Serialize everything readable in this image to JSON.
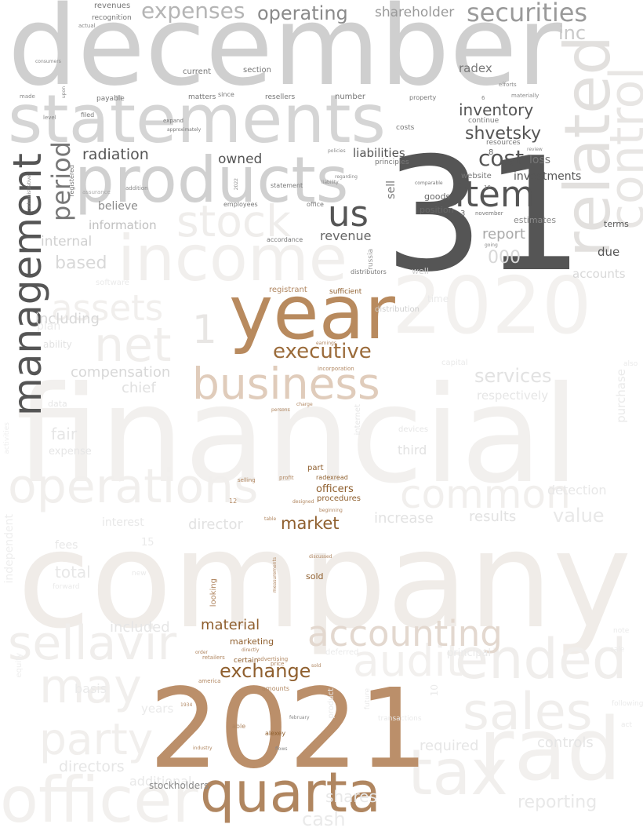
{
  "words": [
    {
      "text": "financial",
      "color": "#f2f0ee"
    },
    {
      "text": "company",
      "color": "#f0ece8"
    },
    {
      "text": "2020",
      "color": "#f3f1ef"
    },
    {
      "text": "income",
      "color": "#f1efed"
    },
    {
      "text": "rad",
      "color": "#f2f0ee"
    },
    {
      "text": "officer",
      "color": "#f2f0ee"
    },
    {
      "text": "operations",
      "color": "#f1efed"
    },
    {
      "text": "sellavir",
      "color": "#f0eeec"
    },
    {
      "text": "common",
      "color": "#f1efed"
    },
    {
      "text": "ended",
      "color": "#f0eeec"
    },
    {
      "text": "sales",
      "color": "#f0eeec"
    },
    {
      "text": "tax",
      "color": "#f1efed"
    },
    {
      "text": "may",
      "color": "#f1efed"
    },
    {
      "text": "party",
      "color": "#f1efed"
    },
    {
      "text": "audit",
      "color": "#f2f0ee"
    },
    {
      "text": "net",
      "color": "#f0eeec"
    },
    {
      "text": "assets",
      "color": "#f1efed"
    },
    {
      "text": "stock",
      "color": "#efedeb"
    },
    {
      "text": "related",
      "color": "#e2e0de"
    },
    {
      "text": "control",
      "color": "#e8e6e4"
    },
    {
      "text": "december",
      "color": "#cfcfcf"
    },
    {
      "text": "statements",
      "color": "#d5d5d5"
    },
    {
      "text": "products",
      "color": "#d0d0d0"
    },
    {
      "text": "31",
      "color": "#555555"
    },
    {
      "text": "item",
      "color": "#555555"
    },
    {
      "text": "us",
      "color": "#555555"
    },
    {
      "text": "management",
      "color": "#555555"
    },
    {
      "text": "period",
      "color": "#777777"
    },
    {
      "text": "securities",
      "color": "#9a9a9a"
    },
    {
      "text": "expenses",
      "color": "#b5b5b5"
    },
    {
      "text": "operating",
      "color": "#8a8a8a"
    },
    {
      "text": "shareholder",
      "color": "#9a9a9a"
    },
    {
      "text": "inc",
      "color": "#c8c8c8"
    },
    {
      "text": "inventory",
      "color": "#555555"
    },
    {
      "text": "shvetsky",
      "color": "#555555"
    },
    {
      "text": "cost",
      "color": "#555555"
    },
    {
      "text": "radiation",
      "color": "#555555"
    },
    {
      "text": "owned",
      "color": "#555555"
    },
    {
      "text": "liabilities",
      "color": "#555555"
    },
    {
      "text": "investments",
      "color": "#555555"
    },
    {
      "text": "loss",
      "color": "#777777"
    },
    {
      "text": "radex",
      "color": "#777777"
    },
    {
      "text": "website",
      "color": "#777777"
    },
    {
      "text": "revenue",
      "color": "#666666"
    },
    {
      "text": "goods",
      "color": "#666666"
    },
    {
      "text": "position",
      "color": "#666666"
    },
    {
      "text": "report",
      "color": "#aaaaaa"
    },
    {
      "text": "due",
      "color": "#555555"
    },
    {
      "text": "terms",
      "color": "#555555"
    },
    {
      "text": "estimates",
      "color": "#8a8a8a"
    },
    {
      "text": "believe",
      "color": "#8a8a8a"
    },
    {
      "text": "information",
      "color": "#c0c0c0"
    },
    {
      "text": "internal",
      "color": "#d0d0d0"
    },
    {
      "text": "based",
      "color": "#d8d8d8"
    },
    {
      "text": "including",
      "color": "#d8d8d8"
    },
    {
      "text": "1",
      "color": "#e8e6e4"
    },
    {
      "text": "000",
      "color": "#d8d8d8"
    },
    {
      "text": "accounts",
      "color": "#d8d8d8"
    },
    {
      "text": "sell",
      "color": "#777777"
    },
    {
      "text": "current",
      "color": "#777777"
    },
    {
      "text": "section",
      "color": "#777777"
    },
    {
      "text": "resellers",
      "color": "#777777"
    },
    {
      "text": "number",
      "color": "#777777"
    },
    {
      "text": "matters",
      "color": "#777777"
    },
    {
      "text": "since",
      "color": "#777777"
    },
    {
      "text": "payable",
      "color": "#777777"
    },
    {
      "text": "filed",
      "color": "#777777"
    },
    {
      "text": "continue",
      "color": "#777777"
    },
    {
      "text": "costs",
      "color": "#777777"
    },
    {
      "text": "resources",
      "color": "#777777"
    },
    {
      "text": "property",
      "color": "#777777"
    },
    {
      "text": "recognition",
      "color": "#777777"
    },
    {
      "text": "revenues",
      "color": "#777777"
    },
    {
      "text": "accordance",
      "color": "#777777"
    },
    {
      "text": "statement",
      "color": "#777777"
    },
    {
      "text": "employees",
      "color": "#777777"
    },
    {
      "text": "office",
      "color": "#777777"
    },
    {
      "text": "principles",
      "color": "#777777"
    },
    {
      "text": "distributors",
      "color": "#777777"
    },
    {
      "text": "approximately",
      "color": "#777777"
    },
    {
      "text": "registered",
      "color": "#777777"
    },
    {
      "text": "year",
      "color": "#b88a5e"
    },
    {
      "text": "business",
      "color": "#e0ccbb"
    },
    {
      "text": "executive",
      "color": "#9b6b3a"
    },
    {
      "text": "2021",
      "color": "#bb8f6a"
    },
    {
      "text": "quarta",
      "color": "#b08660"
    },
    {
      "text": "accounting",
      "color": "#e3d8cf"
    },
    {
      "text": "exchange",
      "color": "#8f5f2e"
    },
    {
      "text": "market",
      "color": "#8f5f2e"
    },
    {
      "text": "material",
      "color": "#8f5f2e"
    },
    {
      "text": "officers",
      "color": "#8f5f2e"
    },
    {
      "text": "procedures",
      "color": "#8f5f2e"
    },
    {
      "text": "radexread",
      "color": "#8f5f2e"
    },
    {
      "text": "part",
      "color": "#8f5f2e"
    },
    {
      "text": "sold",
      "color": "#8f5f2e"
    },
    {
      "text": "marketing",
      "color": "#8f5f2e"
    },
    {
      "text": "certain",
      "color": "#8f5f2e"
    },
    {
      "text": "sufficient",
      "color": "#8f5f2e"
    },
    {
      "text": "registrant",
      "color": "#b08660"
    },
    {
      "text": "looking",
      "color": "#b08660"
    },
    {
      "text": "alexey",
      "color": "#8f5f2e"
    },
    {
      "text": "well",
      "color": "#cfcfcf"
    },
    {
      "text": "distribution",
      "color": "#cfcfcf"
    },
    {
      "text": "compensation",
      "color": "#d8d8d8"
    },
    {
      "text": "chief",
      "color": "#e0e0e0"
    },
    {
      "text": "services",
      "color": "#e2e2e2"
    },
    {
      "text": "respectively",
      "color": "#e6e6e6"
    },
    {
      "text": "fair",
      "color": "#e6e6e6"
    },
    {
      "text": "expense",
      "color": "#e6e6e6"
    },
    {
      "text": "third",
      "color": "#e2e2e2"
    },
    {
      "text": "director",
      "color": "#e2e2e2"
    },
    {
      "text": "increase",
      "color": "#e2e2e2"
    },
    {
      "text": "results",
      "color": "#e2e2e2"
    },
    {
      "text": "value",
      "color": "#e8e8e8"
    },
    {
      "text": "detection",
      "color": "#e8e8e8"
    },
    {
      "text": "fees",
      "color": "#e8e8e8"
    },
    {
      "text": "interest",
      "color": "#e8e8e8"
    },
    {
      "text": "total",
      "color": "#e8e8e8"
    },
    {
      "text": "included",
      "color": "#e6e6e6"
    },
    {
      "text": "required",
      "color": "#e6e6e6"
    },
    {
      "text": "controls",
      "color": "#e6e6e6"
    },
    {
      "text": "directors",
      "color": "#e6e6e6"
    },
    {
      "text": "additional",
      "color": "#e8e8e8"
    },
    {
      "text": "reporting",
      "color": "#e8e8e8"
    },
    {
      "text": "shares",
      "color": "#e8e8e8"
    },
    {
      "text": "cash",
      "color": "#eaeaea"
    },
    {
      "text": "years",
      "color": "#eaeaea"
    },
    {
      "text": "basis",
      "color": "#eaeaea"
    },
    {
      "text": "principal",
      "color": "#eaeaea"
    },
    {
      "text": "10",
      "color": "#eaeaea"
    },
    {
      "text": "15",
      "color": "#eaeaea"
    },
    {
      "text": "independent",
      "color": "#eeeeee"
    },
    {
      "text": "equity",
      "color": "#eeeeee"
    },
    {
      "text": "stockholders",
      "color": "#8a8a8a"
    },
    {
      "text": "purchase",
      "color": "#eaeaea"
    },
    {
      "text": "time",
      "color": "#eaeaea"
    },
    {
      "text": "software",
      "color": "#eaeaea"
    },
    {
      "text": "plan",
      "color": "#eaeaea"
    },
    {
      "text": "internet",
      "color": "#e6e6e6"
    },
    {
      "text": "devices",
      "color": "#e6e6e6"
    },
    {
      "text": "capital",
      "color": "#eaeaea"
    },
    {
      "text": "deferred",
      "color": "#eaeaea"
    },
    {
      "text": "future",
      "color": "#eaeaea"
    },
    {
      "text": "forward",
      "color": "#eaeaea"
    },
    {
      "text": "new",
      "color": "#eaeaea"
    },
    {
      "text": "sale",
      "color": "#eaeaea"
    },
    {
      "text": "note",
      "color": "#eaeaea"
    },
    {
      "text": "act",
      "color": "#eaeaea"
    },
    {
      "text": "also",
      "color": "#eaeaea"
    },
    {
      "text": "activities",
      "color": "#eeeeee"
    },
    {
      "text": "transactions",
      "color": "#eaeaea"
    },
    {
      "text": "following",
      "color": "#eaeaea"
    },
    {
      "text": "product",
      "color": "#eaeaea"
    },
    {
      "text": "russia",
      "color": "#999999"
    },
    {
      "text": "amounts",
      "color": "#b08660"
    },
    {
      "text": "advertising",
      "color": "#b08660"
    },
    {
      "text": "price",
      "color": "#b08660"
    },
    {
      "text": "america",
      "color": "#b08660"
    },
    {
      "text": "retailers",
      "color": "#b08660"
    },
    {
      "text": "industry",
      "color": "#b08660"
    },
    {
      "text": "able",
      "color": "#b08660"
    },
    {
      "text": "order",
      "color": "#b08660"
    },
    {
      "text": "1934",
      "color": "#b08660"
    },
    {
      "text": "12",
      "color": "#b08660"
    },
    {
      "text": "selling",
      "color": "#b08660"
    },
    {
      "text": "profit",
      "color": "#b08660"
    },
    {
      "text": "table",
      "color": "#b08660"
    },
    {
      "text": "discussed",
      "color": "#b08660"
    },
    {
      "text": "measurements",
      "color": "#b08660"
    },
    {
      "text": "directly",
      "color": "#b08660"
    },
    {
      "text": "incorporation",
      "color": "#b08660"
    },
    {
      "text": "earnings",
      "color": "#b08660"
    },
    {
      "text": "ability",
      "color": "#e2e2e2"
    },
    {
      "text": "data",
      "color": "#e6e6e6"
    },
    {
      "text": "3",
      "color": "#666666"
    },
    {
      "text": "8",
      "color": "#666666"
    },
    {
      "text": "6",
      "color": "#888888"
    },
    {
      "text": "16",
      "color": "#777777"
    },
    {
      "text": "2022",
      "color": "#888888"
    },
    {
      "text": "november",
      "color": "#777777"
    },
    {
      "text": "comparable",
      "color": "#777777"
    },
    {
      "text": "expand",
      "color": "#777777"
    },
    {
      "text": "made",
      "color": "#888888"
    },
    {
      "text": "level",
      "color": "#888888"
    },
    {
      "text": "going",
      "color": "#888888"
    },
    {
      "text": "review",
      "color": "#888888"
    },
    {
      "text": "addition",
      "color": "#888888"
    },
    {
      "text": "assurance",
      "color": "#aaaaaa"
    },
    {
      "text": "actual",
      "color": "#888888"
    },
    {
      "text": "materially",
      "color": "#888888"
    },
    {
      "text": "efforts",
      "color": "#888888"
    },
    {
      "text": "upon",
      "color": "#888888"
    },
    {
      "text": "consumers",
      "color": "#888888"
    },
    {
      "text": "administrative",
      "color": "#888888"
    },
    {
      "text": "policies",
      "color": "#888888"
    },
    {
      "text": "liability",
      "color": "#888888"
    },
    {
      "text": "regarding",
      "color": "#888888"
    },
    {
      "text": "persons",
      "color": "#b08660"
    },
    {
      "text": "designed",
      "color": "#b08660"
    },
    {
      "text": "beginning",
      "color": "#b08660"
    },
    {
      "text": "charge",
      "color": "#b08660"
    },
    {
      "text": "february",
      "color": "#888888"
    },
    {
      "text": "flows",
      "color": "#888888"
    },
    {
      "text": "sold",
      "color": "#b08660"
    }
  ]
}
